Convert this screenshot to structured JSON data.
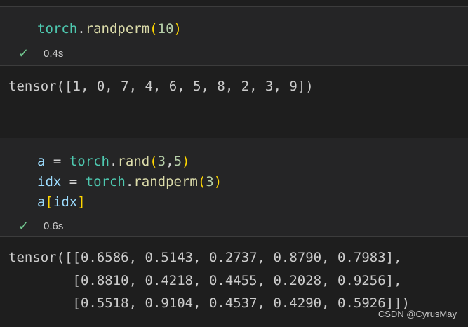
{
  "cells": [
    {
      "code_lines": [
        [
          {
            "t": "torch",
            "c": "mod"
          },
          {
            "t": ".",
            "c": "op"
          },
          {
            "t": "randperm",
            "c": "fn"
          },
          {
            "t": "(",
            "c": "br"
          },
          {
            "t": "10",
            "c": "num"
          },
          {
            "t": ")",
            "c": "br"
          }
        ]
      ],
      "status_icon": "check-icon",
      "duration": "0.4s",
      "output": [
        "tensor([1, 0, 7, 4, 6, 5, 8, 2, 3, 9])"
      ]
    },
    {
      "code_lines": [
        [
          {
            "t": "a",
            "c": "var"
          },
          {
            "t": " = ",
            "c": "op"
          },
          {
            "t": "torch",
            "c": "mod"
          },
          {
            "t": ".",
            "c": "op"
          },
          {
            "t": "rand",
            "c": "fn"
          },
          {
            "t": "(",
            "c": "br"
          },
          {
            "t": "3",
            "c": "num"
          },
          {
            "t": ",",
            "c": "op"
          },
          {
            "t": "5",
            "c": "num"
          },
          {
            "t": ")",
            "c": "br"
          }
        ],
        [
          {
            "t": "idx",
            "c": "var"
          },
          {
            "t": " = ",
            "c": "op"
          },
          {
            "t": "torch",
            "c": "mod"
          },
          {
            "t": ".",
            "c": "op"
          },
          {
            "t": "randperm",
            "c": "fn"
          },
          {
            "t": "(",
            "c": "br"
          },
          {
            "t": "3",
            "c": "num"
          },
          {
            "t": ")",
            "c": "br"
          }
        ],
        [
          {
            "t": "a",
            "c": "var"
          },
          {
            "t": "[",
            "c": "br"
          },
          {
            "t": "idx",
            "c": "var"
          },
          {
            "t": "]",
            "c": "br"
          }
        ]
      ],
      "status_icon": "check-icon",
      "duration": "0.6s",
      "output": [
        "tensor([[0.6586, 0.5143, 0.2737, 0.8790, 0.7983],",
        "        [0.8810, 0.4218, 0.4455, 0.2028, 0.9256],",
        "        [0.5518, 0.9104, 0.4537, 0.4290, 0.5926]])"
      ]
    }
  ],
  "watermark": "CSDN @CyrusMay"
}
